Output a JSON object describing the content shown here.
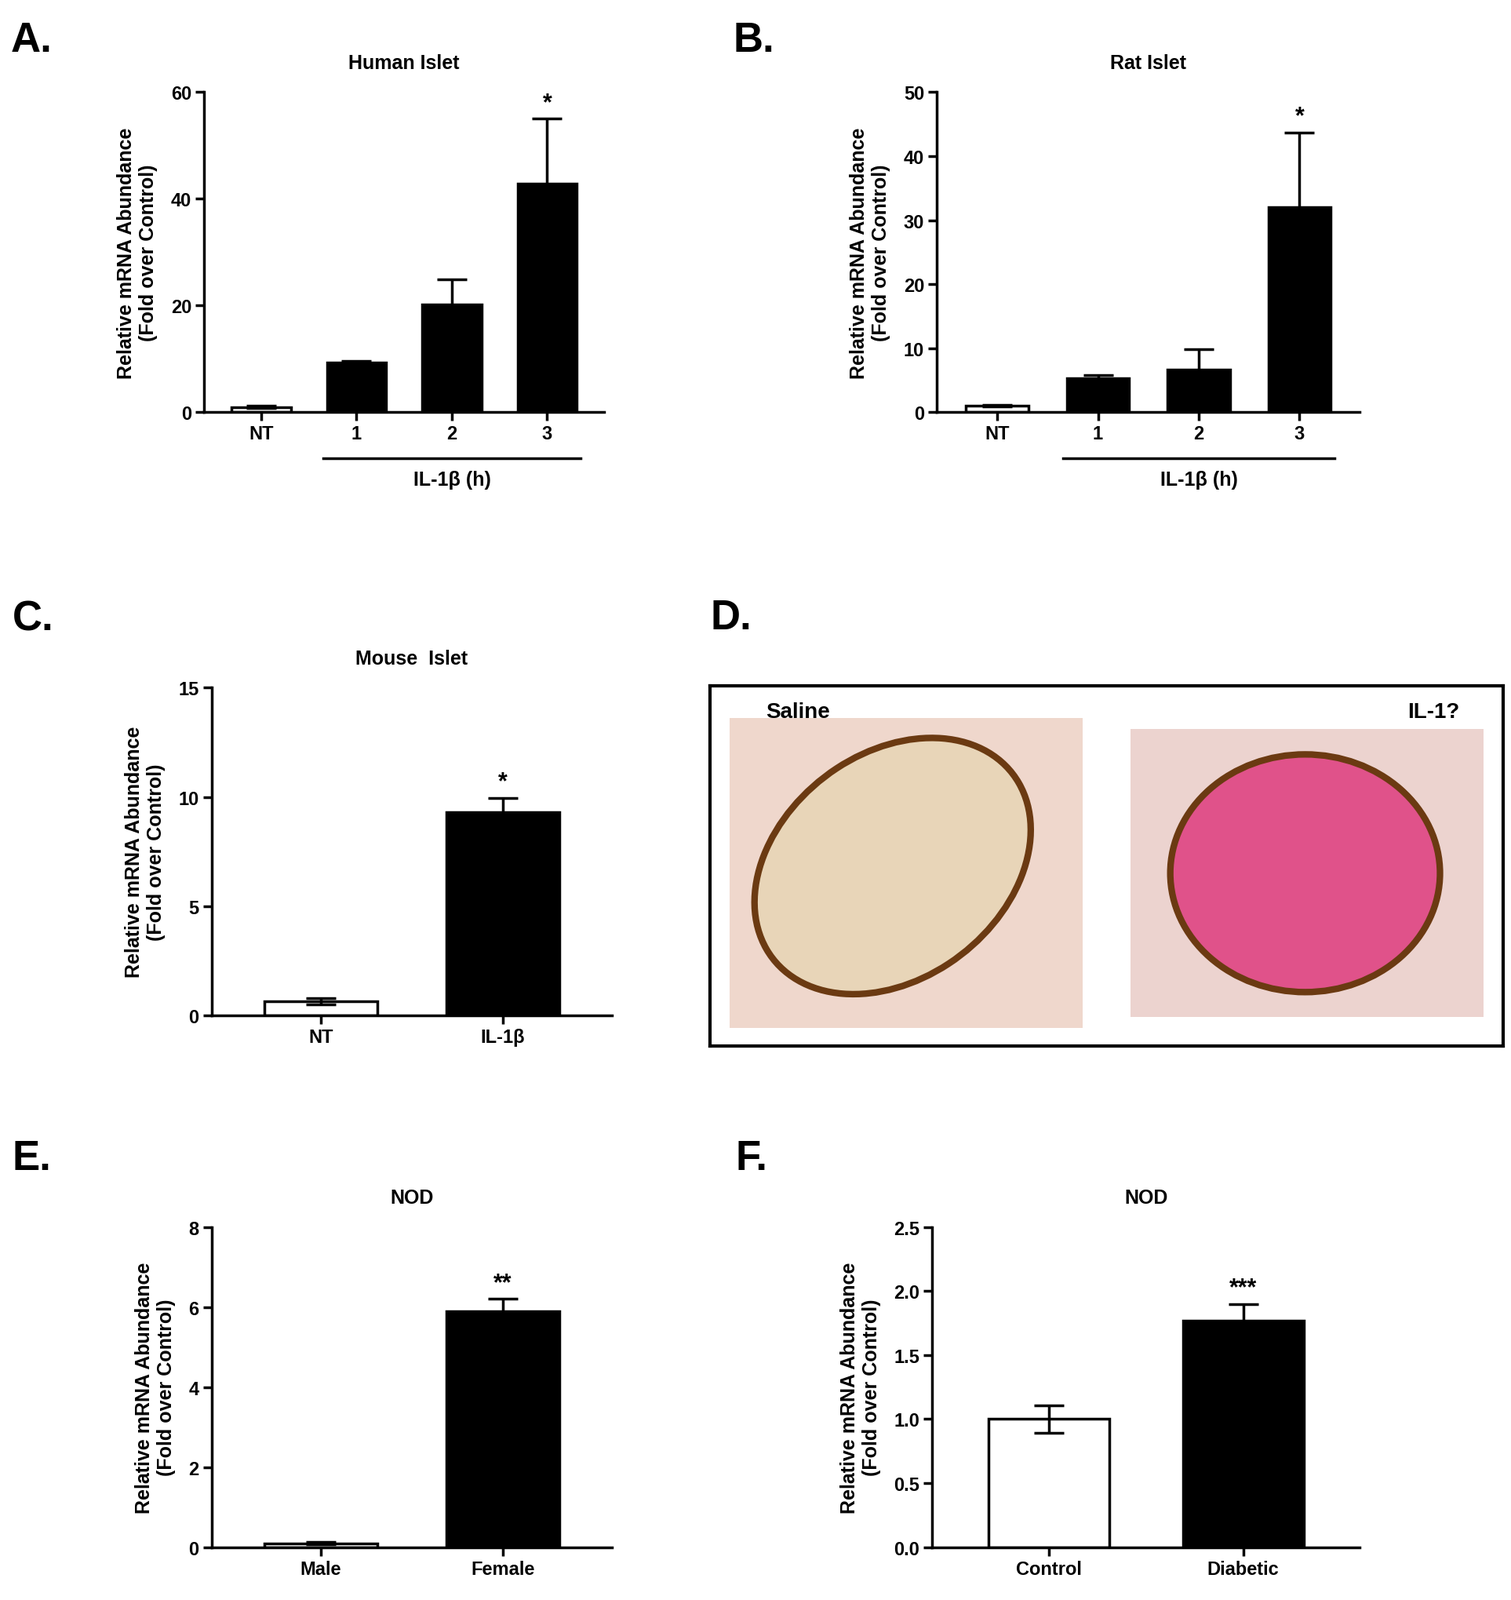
{
  "chart_data": [
    {
      "type": "bar",
      "panel_label": "A.",
      "title": "Human Islet",
      "ylabel": "Relative mRNA Abundance\n(Fold over Control)",
      "categories": [
        "NT",
        "1",
        "2",
        "3"
      ],
      "values": [
        1.0,
        9.3,
        20.2,
        42.8
      ],
      "errors": [
        0.2,
        0.3,
        4.7,
        12.2
      ],
      "colors": [
        "#ffffff",
        "#000000",
        "#000000",
        "#000000"
      ],
      "annotations": [
        null,
        null,
        null,
        "*"
      ],
      "xlabel": "IL-1β (h)",
      "ylim": [
        0,
        60
      ],
      "yticks": [
        0,
        20,
        40,
        60
      ]
    },
    {
      "type": "bar",
      "panel_label": "B.",
      "title": "Rat Islet",
      "ylabel": "Relative mRNA Abundance\n(Fold over Control)",
      "categories": [
        "NT",
        "1",
        "2",
        "3"
      ],
      "values": [
        1.0,
        5.3,
        6.6,
        32.0
      ],
      "errors": [
        0.1,
        0.5,
        3.2,
        11.7
      ],
      "colors": [
        "#ffffff",
        "#000000",
        "#000000",
        "#000000"
      ],
      "annotations": [
        null,
        null,
        null,
        "*"
      ],
      "xlabel": "IL-1β (h)",
      "ylim": [
        0,
        50
      ],
      "yticks": [
        0,
        10,
        20,
        30,
        40,
        50
      ]
    },
    {
      "type": "bar",
      "panel_label": "C.",
      "title": "Mouse  Islet",
      "ylabel": "Relative mRNA Abundance\n(Fold over Control)",
      "categories": [
        "NT",
        "IL-1β"
      ],
      "values": [
        0.65,
        9.3
      ],
      "errors": [
        0.15,
        0.65
      ],
      "colors": [
        "#ffffff",
        "#000000"
      ],
      "annotations": [
        null,
        "*"
      ],
      "ylim": [
        0,
        15
      ],
      "yticks": [
        0,
        5,
        10,
        15
      ]
    },
    {
      "type": "image",
      "panel_label": "D.",
      "labels": [
        "Saline",
        "IL-1?"
      ]
    },
    {
      "type": "bar",
      "panel_label": "E.",
      "title": "NOD",
      "ylabel": "Relative mRNA Abundance\n(Fold over Control)",
      "categories": [
        "Male",
        "Female"
      ],
      "values": [
        0.1,
        5.9
      ],
      "errors": [
        0.03,
        0.3
      ],
      "colors": [
        "#ffffff",
        "#000000"
      ],
      "annotations": [
        null,
        "**"
      ],
      "ylim": [
        0,
        8
      ],
      "yticks": [
        0,
        2,
        4,
        6,
        8
      ]
    },
    {
      "type": "bar",
      "panel_label": "F.",
      "title": "NOD",
      "ylabel": "Relative mRNA Abundance\n(Fold over Control)",
      "categories": [
        "Control",
        "Diabetic"
      ],
      "values": [
        1.0,
        1.77
      ],
      "errors": [
        0.11,
        0.13
      ],
      "colors": [
        "#ffffff",
        "#000000"
      ],
      "annotations": [
        null,
        "***"
      ],
      "ylim": [
        0,
        2.5
      ],
      "yticks": [
        {
          "value": 0,
          "label": "0.0"
        },
        {
          "value": 0.5,
          "label": "0.5"
        },
        {
          "value": 1,
          "label": "1.0"
        },
        {
          "value": 1.5,
          "label": "1.5"
        },
        {
          "value": 2,
          "label": "2.0"
        },
        {
          "value": 2.5,
          "label": "2.5"
        }
      ]
    }
  ]
}
